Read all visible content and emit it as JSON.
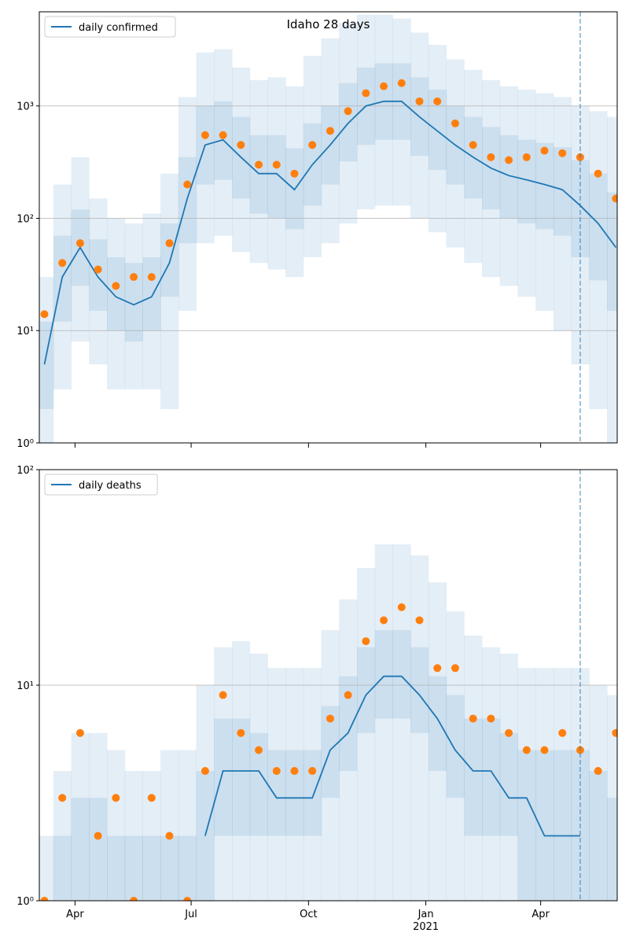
{
  "chart_data": [
    {
      "type": "line",
      "title": "Idaho 28 days",
      "x": [
        "2020-03-08",
        "2020-03-22",
        "2020-04-05",
        "2020-04-19",
        "2020-05-03",
        "2020-05-17",
        "2020-05-31",
        "2020-06-14",
        "2020-06-28",
        "2020-07-12",
        "2020-07-26",
        "2020-08-09",
        "2020-08-23",
        "2020-09-06",
        "2020-09-20",
        "2020-10-04",
        "2020-10-18",
        "2020-11-01",
        "2020-11-15",
        "2020-11-29",
        "2020-12-13",
        "2020-12-27",
        "2021-01-10",
        "2021-01-24",
        "2021-02-07",
        "2021-02-21",
        "2021-03-07",
        "2021-03-21",
        "2021-04-04",
        "2021-04-18",
        "2021-05-02",
        "2021-05-16",
        "2021-05-30"
      ],
      "series": [
        {
          "name": "daily confirmed",
          "color": "#1f77b4",
          "values": [
            5,
            30,
            55,
            30,
            20,
            17,
            20,
            40,
            150,
            450,
            500,
            350,
            250,
            250,
            180,
            300,
            450,
            700,
            1000,
            1100,
            1100,
            800,
            600,
            450,
            350,
            280,
            240,
            220,
            200,
            180,
            130,
            90,
            55
          ]
        }
      ],
      "observed": {
        "color": "#ff7f0e",
        "values": [
          14,
          40,
          60,
          35,
          25,
          30,
          30,
          60,
          200,
          550,
          550,
          450,
          300,
          300,
          250,
          450,
          600,
          900,
          1300,
          1500,
          1600,
          1100,
          1100,
          700,
          450,
          350,
          330,
          350,
          400,
          380,
          350,
          250,
          150
        ]
      },
      "bands": [
        {
          "lower": [
            1,
            3,
            8,
            5,
            3,
            3,
            3,
            2,
            15,
            60,
            70,
            50,
            40,
            35,
            30,
            45,
            60,
            90,
            120,
            130,
            130,
            100,
            75,
            55,
            40,
            30,
            25,
            20,
            15,
            10,
            5,
            2,
            1
          ],
          "upper": [
            30,
            200,
            350,
            150,
            100,
            90,
            110,
            250,
            1200,
            3000,
            3200,
            2200,
            1700,
            1800,
            1500,
            2800,
            4000,
            5500,
            6500,
            6500,
            6000,
            4500,
            3500,
            2600,
            2100,
            1700,
            1500,
            1400,
            1300,
            1200,
            1000,
            900,
            800
          ]
        },
        {
          "lower": [
            2,
            12,
            25,
            15,
            10,
            8,
            10,
            20,
            60,
            200,
            220,
            150,
            110,
            100,
            80,
            130,
            200,
            320,
            450,
            500,
            500,
            360,
            270,
            200,
            150,
            120,
            100,
            90,
            80,
            70,
            45,
            28,
            15
          ],
          "upper": [
            12,
            70,
            120,
            65,
            45,
            40,
            45,
            90,
            350,
            1000,
            1100,
            800,
            550,
            550,
            420,
            700,
            1000,
            1600,
            2200,
            2400,
            2400,
            1800,
            1400,
            1000,
            800,
            650,
            550,
            500,
            470,
            430,
            330,
            250,
            170
          ]
        }
      ],
      "xlim": [
        "2020-03-04",
        "2021-05-31"
      ],
      "xticks": [
        "2020-04-01",
        "2020-07-01",
        "2020-10-01",
        "2021-01-01",
        "2021-04-01"
      ],
      "ylim": [
        1,
        6900
      ],
      "log_y": true,
      "grid": true,
      "legend": "upper left",
      "yticks": [
        {
          "value": 1,
          "label": "10⁰"
        },
        {
          "value": 10,
          "label": "10¹"
        },
        {
          "value": 100,
          "label": "10²"
        },
        {
          "value": 1000,
          "label": "10³"
        }
      ],
      "vline": "2021-05-02"
    },
    {
      "type": "line",
      "x": [
        "2020-03-08",
        "2020-03-22",
        "2020-04-05",
        "2020-04-19",
        "2020-05-03",
        "2020-05-17",
        "2020-05-31",
        "2020-06-14",
        "2020-06-28",
        "2020-07-12",
        "2020-07-26",
        "2020-08-09",
        "2020-08-23",
        "2020-09-06",
        "2020-09-20",
        "2020-10-04",
        "2020-10-18",
        "2020-11-01",
        "2020-11-15",
        "2020-11-29",
        "2020-12-13",
        "2020-12-27",
        "2021-01-10",
        "2021-01-24",
        "2021-02-07",
        "2021-02-21",
        "2021-03-07",
        "2021-03-21",
        "2021-04-04",
        "2021-04-18",
        "2021-05-02",
        "2021-05-16",
        "2021-05-30"
      ],
      "series": [
        {
          "name": "daily deaths",
          "color": "#1f77b4",
          "values": [
            null,
            null,
            null,
            null,
            null,
            null,
            null,
            null,
            null,
            2,
            4,
            4,
            4,
            3,
            3,
            3,
            5,
            6,
            9,
            11,
            11,
            9,
            7,
            5,
            4,
            4,
            3,
            3,
            2,
            2,
            2,
            null,
            null
          ]
        }
      ],
      "observed": {
        "color": "#ff7f0e",
        "values": [
          1,
          3,
          6,
          2,
          3,
          1,
          3,
          2,
          1,
          4,
          9,
          6,
          5,
          4,
          4,
          4,
          7,
          9,
          16,
          20,
          23,
          20,
          12,
          12,
          7,
          7,
          6,
          5,
          5,
          6,
          5,
          4,
          6
        ]
      },
      "bands": [
        {
          "lower": [
            1,
            1,
            1,
            1,
            1,
            1,
            1,
            1,
            1,
            1,
            1,
            1,
            1,
            1,
            1,
            1,
            1,
            1,
            1,
            1,
            1,
            1,
            1,
            1,
            1,
            1,
            1,
            1,
            1,
            1,
            1,
            1,
            1
          ],
          "upper": [
            2,
            4,
            6,
            6,
            5,
            4,
            4,
            5,
            5,
            10,
            15,
            16,
            14,
            12,
            12,
            12,
            18,
            25,
            35,
            45,
            45,
            40,
            30,
            22,
            17,
            15,
            14,
            12,
            12,
            12,
            12,
            10,
            9
          ]
        },
        {
          "lower": [
            1,
            1,
            1,
            1,
            1,
            1,
            1,
            1,
            1,
            1,
            2,
            2,
            2,
            2,
            2,
            2,
            3,
            4,
            6,
            7,
            7,
            6,
            4,
            3,
            2,
            2,
            2,
            1,
            1,
            1,
            1,
            1,
            1
          ],
          "upper": [
            1,
            2,
            3,
            3,
            2,
            2,
            2,
            2,
            2,
            4,
            7,
            7,
            6,
            5,
            5,
            5,
            8,
            11,
            15,
            18,
            18,
            15,
            11,
            9,
            7,
            7,
            6,
            5,
            5,
            5,
            5,
            4,
            3
          ]
        }
      ],
      "xlim": [
        "2020-03-04",
        "2021-05-31"
      ],
      "xticks": [
        {
          "value": "2020-04-01",
          "label": "Apr"
        },
        {
          "value": "2020-07-01",
          "label": "Jul"
        },
        {
          "value": "2020-10-01",
          "label": "Oct"
        },
        {
          "value": "2021-01-01",
          "label": "Jan",
          "sublabel": "2021"
        },
        {
          "value": "2021-04-01",
          "label": "Apr"
        }
      ],
      "ylim": [
        1,
        100
      ],
      "log_y": true,
      "grid": true,
      "legend": "upper left",
      "yticks": [
        {
          "value": 1,
          "label": "10⁰"
        },
        {
          "value": 10,
          "label": "10¹"
        },
        {
          "value": 100,
          "label": "10²"
        }
      ],
      "vline": "2021-05-02"
    }
  ]
}
